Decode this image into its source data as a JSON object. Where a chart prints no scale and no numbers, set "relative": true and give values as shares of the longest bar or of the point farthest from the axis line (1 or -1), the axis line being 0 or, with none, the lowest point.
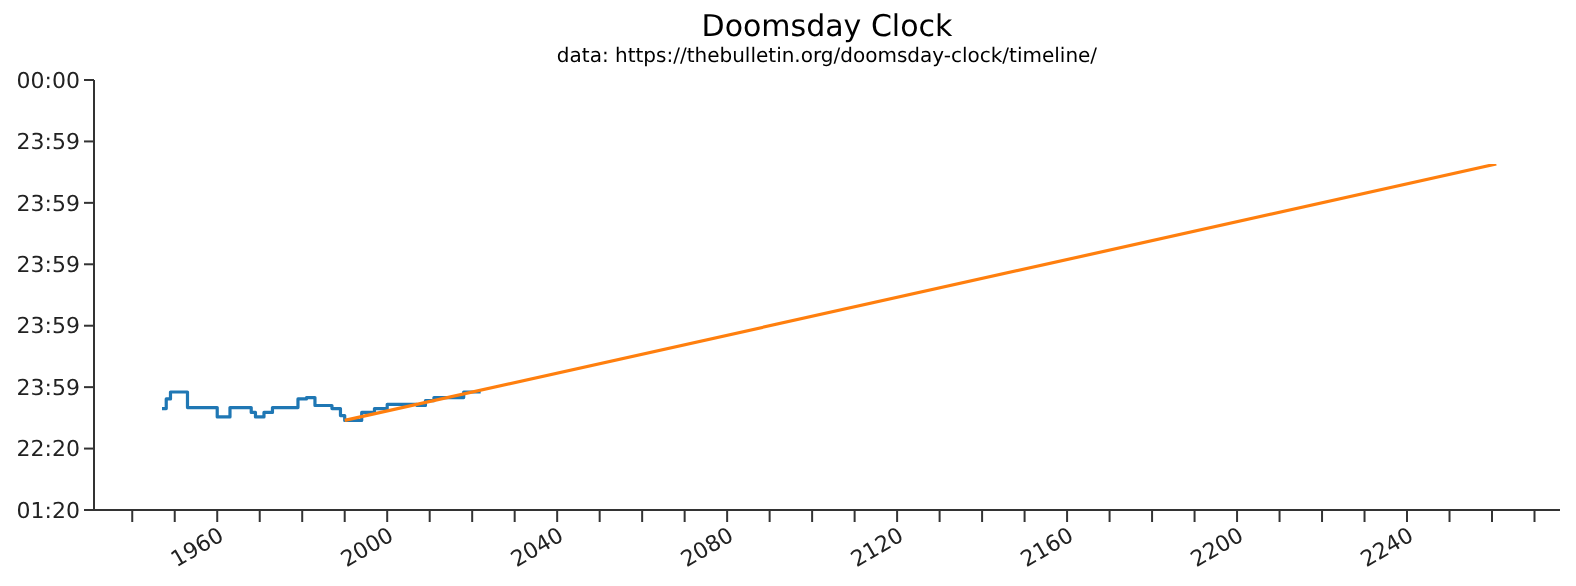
{
  "chart_data": {
    "type": "line",
    "relative": true,
    "title": "Doomsday Clock",
    "subtitle": "data: https://thebulletin.org/doomsday-clock/timeline/",
    "annotations": [
      "00:00",
      "23:59",
      "23:59",
      "23:59",
      "23:59",
      "23:59",
      "22:20",
      "01:20"
    ],
    "xlim": [
      1931,
      2276
    ],
    "xticks": [
      {
        "value": 1940,
        "label": null
      },
      {
        "value": 1950,
        "label": null
      },
      1960,
      {
        "value": 1970,
        "label": null
      },
      {
        "value": 1980,
        "label": null
      },
      {
        "value": 1990,
        "label": null
      },
      2000,
      {
        "value": 2010,
        "label": null
      },
      {
        "value": 2020,
        "label": null
      },
      {
        "value": 2030,
        "label": null
      },
      2040,
      {
        "value": 2050,
        "label": null
      },
      {
        "value": 2060,
        "label": null
      },
      {
        "value": 2070,
        "label": null
      },
      2080,
      {
        "value": 2090,
        "label": null
      },
      {
        "value": 2100,
        "label": null
      },
      {
        "value": 2110,
        "label": null
      },
      2120,
      {
        "value": 2130,
        "label": null
      },
      {
        "value": 2140,
        "label": null
      },
      {
        "value": 2150,
        "label": null
      },
      2160,
      {
        "value": 2170,
        "label": null
      },
      {
        "value": 2180,
        "label": null
      },
      {
        "value": 2190,
        "label": null
      },
      2200,
      {
        "value": 2210,
        "label": null
      },
      {
        "value": 2220,
        "label": null
      },
      {
        "value": 2230,
        "label": null
      },
      2240,
      {
        "value": 2250,
        "label": null
      },
      {
        "value": 2260,
        "label": null
      },
      {
        "value": 2270,
        "label": null
      }
    ],
    "series": [
      {
        "type": "step",
        "color": "#1f77b4",
        "x": [
          1947,
          1948,
          1949,
          1953,
          1960,
          1963,
          1968,
          1969,
          1971,
          1973,
          1979,
          1981,
          1983,
          1987,
          1989,
          1990,
          1994,
          1997,
          2000,
          2007,
          2009,
          2011,
          2018,
          2022
        ],
        "values": [
          0.293,
          0.321,
          0.341,
          0.296,
          0.269,
          0.296,
          0.282,
          0.269,
          0.282,
          0.296,
          0.321,
          0.325,
          0.302,
          0.293,
          0.273,
          0.259,
          0.282,
          0.293,
          0.305,
          0.302,
          0.316,
          0.325,
          0.341,
          0.341
        ]
      },
      {
        "color": "#ff7f0e",
        "x": [
          1990,
          2261
        ],
        "values": [
          0.259,
          1
        ]
      }
    ]
  }
}
